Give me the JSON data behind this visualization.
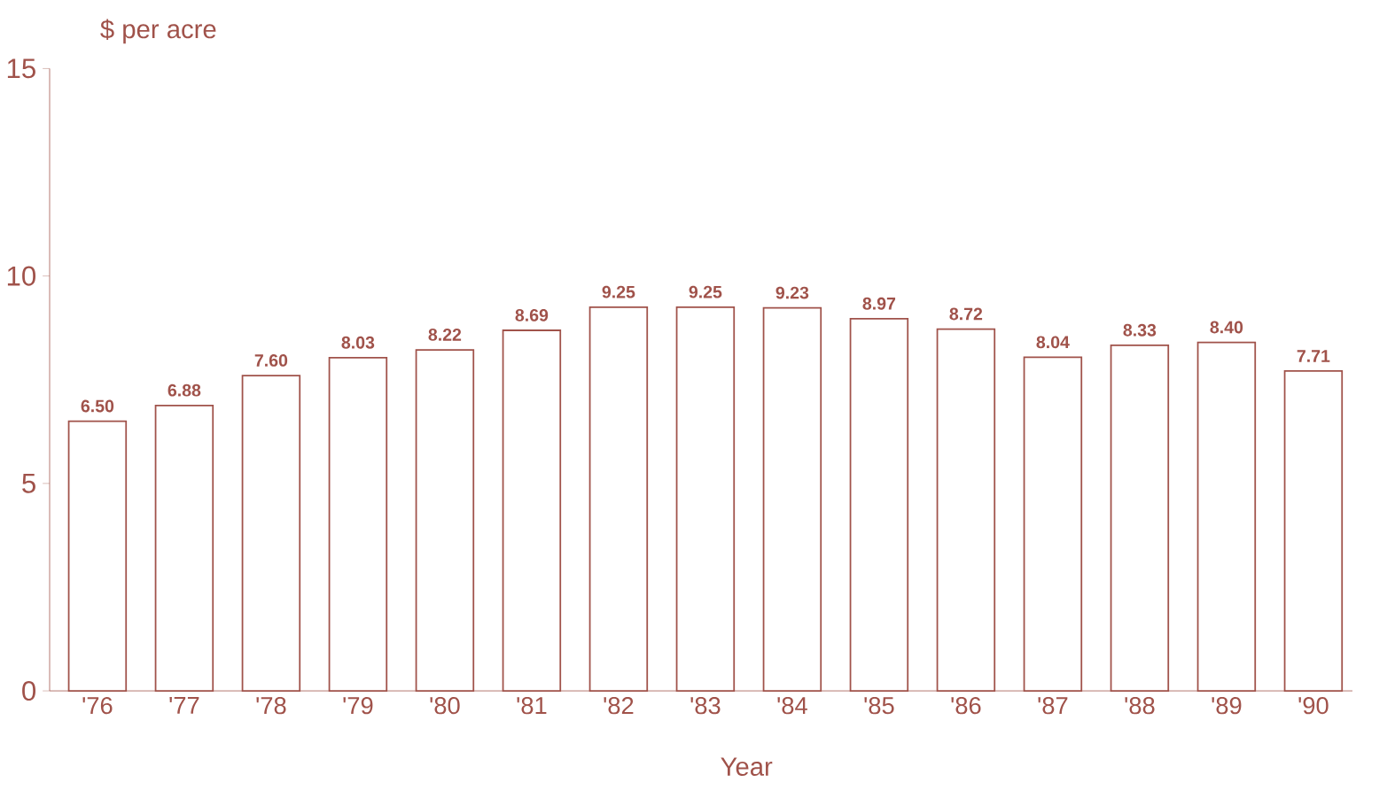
{
  "chart_data": {
    "type": "bar",
    "ylabel": "$ per acre",
    "xlabel": "Year",
    "categories": [
      "'76",
      "'77",
      "'78",
      "'79",
      "'80",
      "'81",
      "'82",
      "'83",
      "'84",
      "'85",
      "'86",
      "'87",
      "'88",
      "'89",
      "'90"
    ],
    "values": [
      6.5,
      6.88,
      7.6,
      8.03,
      8.22,
      8.69,
      9.25,
      9.25,
      9.23,
      8.97,
      8.72,
      8.04,
      8.33,
      8.4,
      7.71
    ],
    "value_labels": [
      "6.50",
      "6.88",
      "7.60",
      "8.03",
      "8.22",
      "8.69",
      "9.25",
      "9.25",
      "9.23",
      "8.97",
      "8.72",
      "8.04",
      "8.33",
      "8.40",
      "7.71"
    ],
    "color": "#a0524a",
    "ylim": [
      0,
      15
    ],
    "yticks": [
      0,
      5,
      10,
      15
    ],
    "grid": false
  }
}
